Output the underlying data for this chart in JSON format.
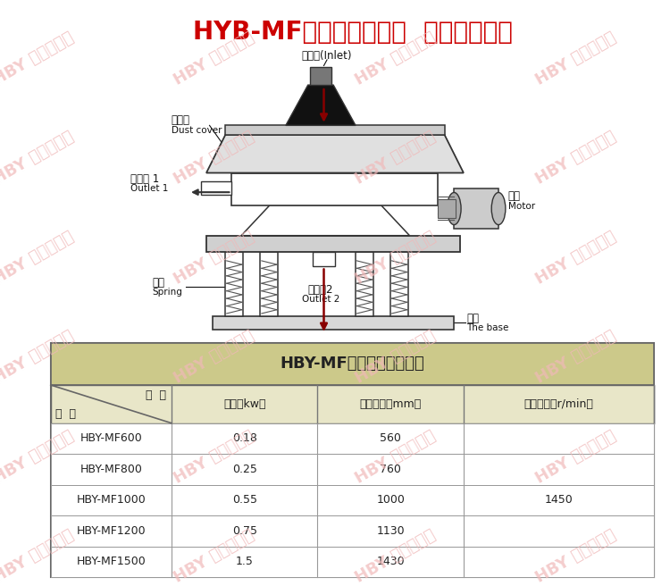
{
  "title": "HYB-MF面粉专用直排筛  产品技术参数",
  "title_color": "#cc0000",
  "bg_color": "#ffffff",
  "watermark_color": "#f0b8b8",
  "side_bar_color": "#cc0000",
  "table_title": "HBY-MF系列产品技术参数",
  "rows": [
    [
      "HBY-MF600",
      "0.18",
      "560",
      ""
    ],
    [
      "HBY-MF800",
      "0.25",
      "760",
      ""
    ],
    [
      "HBY-MF1000",
      "0.55",
      "1000",
      "1450"
    ],
    [
      "HBY-MF1200",
      "0.75",
      "1130",
      ""
    ],
    [
      "HBY-MF1500",
      "1.5",
      "1430",
      ""
    ]
  ],
  "col_headers": [
    "功率（kw）",
    "筛网直径（mm）",
    "电机转速（r/min）"
  ],
  "header_label_xiang": "项  目",
  "header_label_xing": "型  号"
}
